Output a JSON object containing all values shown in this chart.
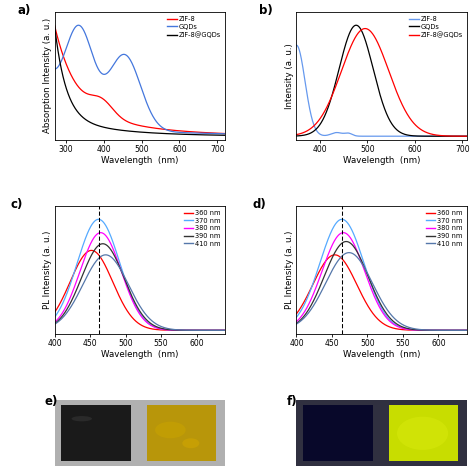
{
  "panel_a": {
    "label": "a)",
    "xlabel": "Wavelength  (nm)",
    "ylabel": "Absorption Intensity (a. u.)",
    "xlim": [
      270,
      720
    ],
    "xticks": [
      300,
      400,
      500,
      600,
      700
    ],
    "legend": [
      "ZIF-8",
      "GQDs",
      "ZIF-8@GQDs"
    ],
    "colors": [
      "red",
      "#4477dd",
      "black"
    ]
  },
  "panel_b": {
    "label": "b)",
    "xlabel": "Wavelength  (nm)",
    "ylabel": "Intensity (a. u.)",
    "xlim": [
      350,
      710
    ],
    "xticks": [
      400,
      500,
      600,
      700
    ],
    "legend": [
      "ZIF-8",
      "GQDs",
      "ZIF-8@GQDs"
    ],
    "colors": [
      "#6699ee",
      "black",
      "red"
    ]
  },
  "panel_c": {
    "label": "c)",
    "xlabel": "Wavelength  (nm)",
    "ylabel": "PL Intensity (a. u.)",
    "xlim": [
      400,
      640
    ],
    "xticks": [
      400,
      450,
      500,
      550,
      600
    ],
    "legend": [
      "360 nm",
      "370 nm",
      "380 nm",
      "390 nm",
      "410 nm"
    ],
    "colors": [
      "red",
      "#55aaff",
      "magenta",
      "#333333",
      "#5577aa"
    ]
  },
  "panel_d": {
    "label": "d)",
    "xlabel": "Wavelength  (nm)",
    "ylabel": "PL Intensity (a. u.)",
    "xlim": [
      400,
      640
    ],
    "xticks": [
      400,
      450,
      500,
      550,
      600
    ],
    "legend": [
      "360 nm",
      "370 nm",
      "380 nm",
      "390 nm",
      "410 nm"
    ],
    "colors": [
      "red",
      "#55aaff",
      "magenta",
      "#333333",
      "#5577aa"
    ]
  },
  "photo_e_left_color": "#1a1a1a",
  "photo_e_right_color": "#b8960a",
  "photo_f_left_color": "#08082a",
  "photo_f_right_color": "#c8dd00",
  "bg_color": "#c8c8c8"
}
